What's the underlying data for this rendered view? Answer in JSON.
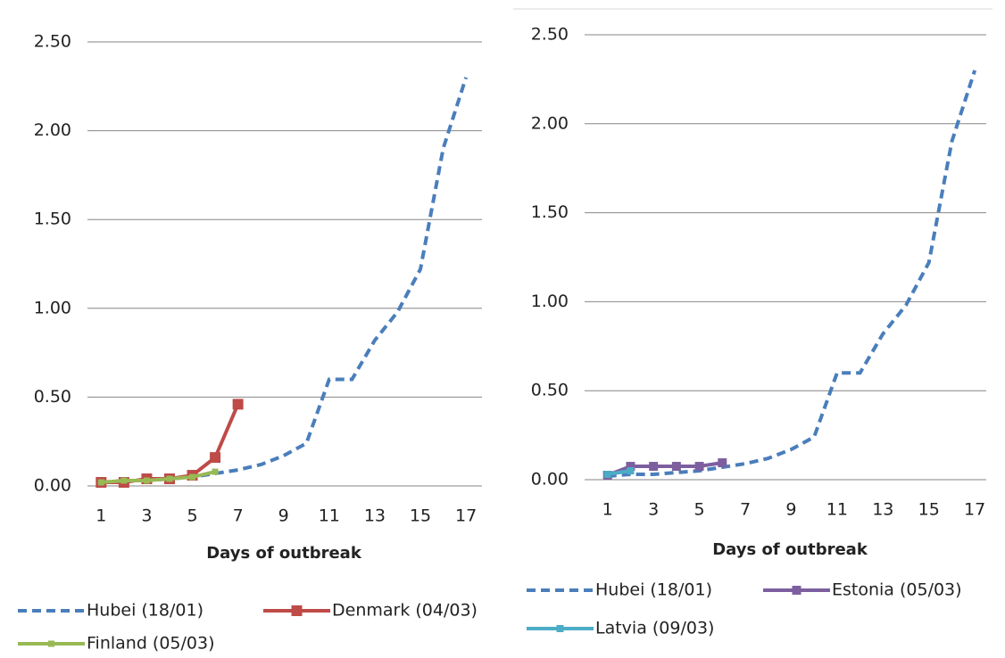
{
  "charts": [
    {
      "chart_data": {
        "type": "line",
        "xlabel": "Days of outbreak",
        "xlim": [
          0.4,
          17.7
        ],
        "xticks": [
          1,
          3,
          5,
          7,
          9,
          11,
          13,
          15,
          17
        ],
        "ylim": [
          0,
          2.5
        ],
        "yticks": [
          {
            "value": 0,
            "label": "0.00"
          },
          {
            "value": 0.5,
            "label": "0.50"
          },
          {
            "value": 1,
            "label": "1.00"
          },
          {
            "value": 1.5,
            "label": "1.50"
          },
          {
            "value": 2,
            "label": "2.00"
          },
          {
            "value": 2.5,
            "label": "2.50"
          }
        ],
        "grid": true,
        "series": [
          {
            "name": "Hubei (18/01)",
            "color": "#4a7ebb",
            "dashed": true,
            "x": [
              1,
              2,
              3,
              4,
              5,
              6,
              7,
              8,
              9,
              10,
              11,
              12,
              13,
              14,
              15,
              16,
              17
            ],
            "values": [
              0.02,
              0.03,
              0.03,
              0.04,
              0.05,
              0.07,
              0.09,
              0.12,
              0.17,
              0.24,
              0.6,
              0.6,
              0.82,
              0.98,
              1.22,
              1.9,
              2.3
            ]
          },
          {
            "name": "Denmark (04/03)",
            "color": "#be4b48",
            "marker": "square",
            "x": [
              1,
              2,
              3,
              4,
              5,
              6,
              7
            ],
            "values": [
              0.02,
              0.02,
              0.04,
              0.04,
              0.06,
              0.16,
              0.46
            ]
          },
          {
            "name": "Finland (05/03)",
            "color": "#98b954",
            "marker": "square",
            "x": [
              1,
              2,
              3,
              4,
              5,
              6
            ],
            "values": [
              0.02,
              0.03,
              0.03,
              0.04,
              0.05,
              0.08
            ]
          }
        ]
      }
    },
    {
      "chart_data": {
        "type": "line",
        "xlabel": "Days of outbreak",
        "xlim": [
          0.0,
          17.5
        ],
        "xticks": [
          1,
          3,
          5,
          7,
          9,
          11,
          13,
          15,
          17
        ],
        "ylim": [
          0,
          2.5
        ],
        "yticks": [
          {
            "value": 0,
            "label": "0.00"
          },
          {
            "value": 0.5,
            "label": "0.50"
          },
          {
            "value": 1,
            "label": "1.00"
          },
          {
            "value": 1.5,
            "label": "1.50"
          },
          {
            "value": 2,
            "label": "2.00"
          },
          {
            "value": 2.5,
            "label": "2.50"
          }
        ],
        "grid": true,
        "series": [
          {
            "name": "Hubei (18/01)",
            "color": "#4a7ebb",
            "dashed": true,
            "x": [
              1,
              2,
              3,
              4,
              5,
              6,
              7,
              8,
              9,
              10,
              11,
              12,
              13,
              14,
              15,
              16,
              17
            ],
            "values": [
              0.02,
              0.03,
              0.03,
              0.04,
              0.05,
              0.07,
              0.09,
              0.12,
              0.17,
              0.24,
              0.6,
              0.6,
              0.82,
              0.98,
              1.22,
              1.9,
              2.3
            ]
          },
          {
            "name": "Estonia (05/03)",
            "color": "#7d5fa0",
            "marker": "square",
            "x": [
              1,
              2,
              3,
              4,
              5,
              6
            ],
            "values": [
              0.025,
              0.075,
              0.075,
              0.075,
              0.075,
              0.095
            ]
          },
          {
            "name": "Latvia (09/03)",
            "color": "#4bacc6",
            "marker": "square",
            "x": [
              1,
              2
            ],
            "values": [
              0.03,
              0.05
            ]
          }
        ]
      }
    }
  ]
}
